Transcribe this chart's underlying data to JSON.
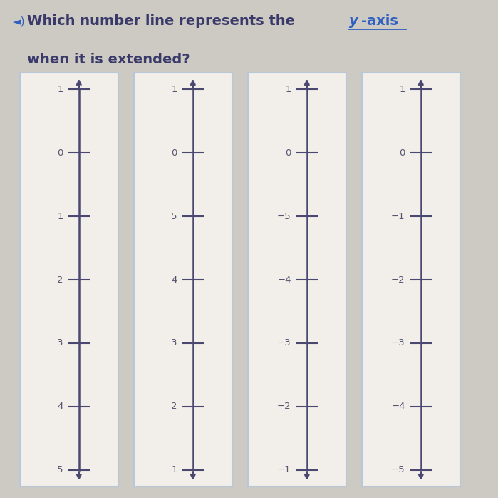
{
  "title_part1": "Which number line represents the ",
  "title_y": "y",
  "title_part2": "-axis",
  "title_line2": "when it is extended?",
  "background_color": "#cdc9c3",
  "panel_bg": "#f2eeea",
  "panel_border": "#b8c8d8",
  "line_color": "#4a4870",
  "tick_color": "#4a4870",
  "text_color": "#555570",
  "title_color": "#3a3a6a",
  "yaxis_color": "#3060c0",
  "speaker_color": "#3060c0",
  "panels": [
    {
      "labels": [
        "1",
        "0",
        "1",
        "2",
        "3",
        "4",
        "5"
      ]
    },
    {
      "labels": [
        "1",
        "0",
        "5",
        "4",
        "3",
        "2",
        "1"
      ]
    },
    {
      "labels": [
        "1",
        "0",
        "−5",
        "−4",
        "−3",
        "−2",
        "−1"
      ]
    },
    {
      "labels": [
        "1",
        "0",
        "−1",
        "−2",
        "−3",
        "−4",
        "−5"
      ]
    }
  ],
  "figsize": [
    6.99,
    6.98
  ],
  "dpi": 100
}
